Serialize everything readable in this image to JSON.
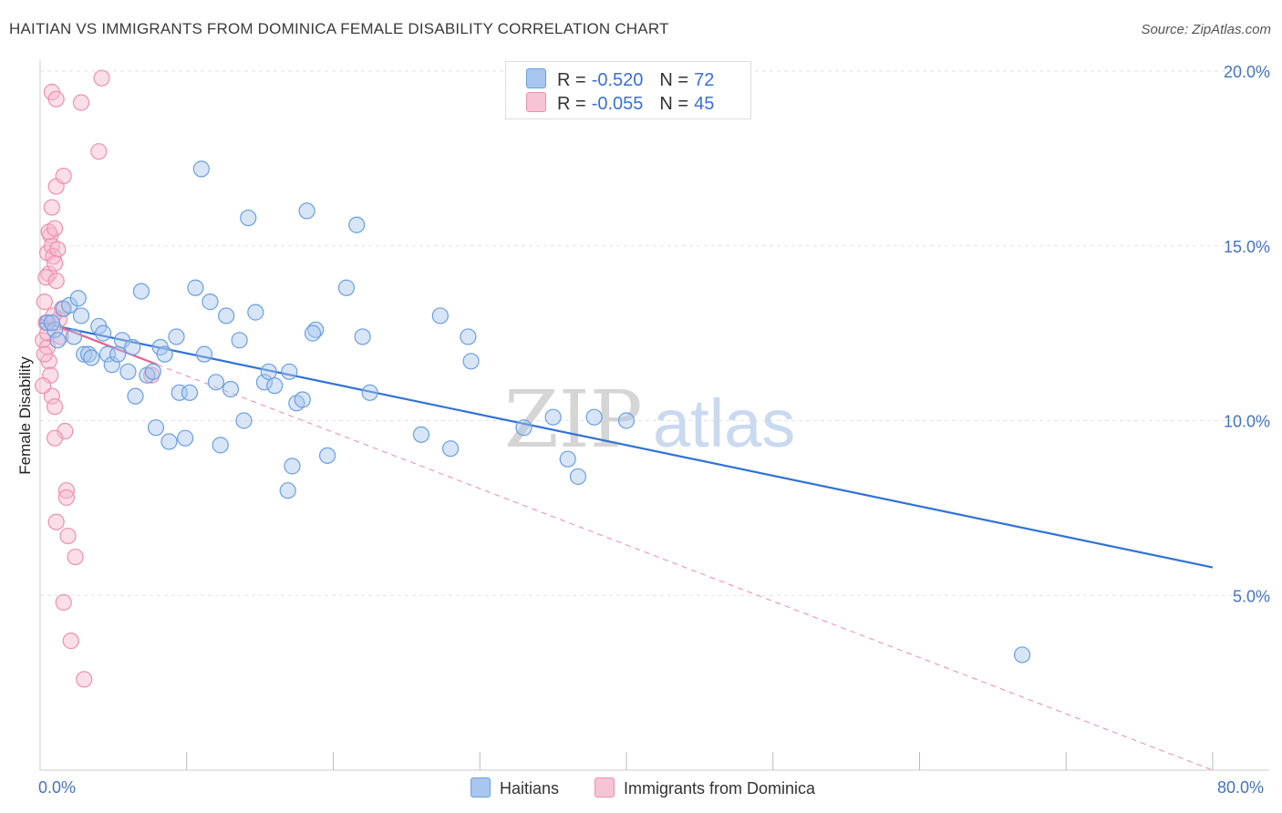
{
  "header": {
    "title": "HAITIAN VS IMMIGRANTS FROM DOMINICA FEMALE DISABILITY CORRELATION CHART",
    "source": "Source: ZipAtlas.com"
  },
  "watermark": {
    "part1": "ZIP",
    "part2": "atlas"
  },
  "legend_top": {
    "rows": [
      {
        "r_label": "R =",
        "r_value": "-0.520",
        "n_label": "N =",
        "n_value": "72",
        "color": "#a9c6ee"
      },
      {
        "r_label": "R =",
        "r_value": "-0.055",
        "n_label": "N =",
        "n_value": "45",
        "color": "#f6b8cb"
      }
    ]
  },
  "legend_bottom": {
    "items": [
      {
        "label": "Haitians",
        "color": "#a9c6ee"
      },
      {
        "label": "Immigrants from Dominica",
        "color": "#f6b8cb"
      }
    ]
  },
  "chart_data": {
    "type": "scatter",
    "xlabel": "",
    "ylabel": "Female Disability",
    "xlim": [
      0,
      80
    ],
    "ylim": [
      0,
      20
    ],
    "x_tick_labels": {
      "min": "0.0%",
      "max": "80.0%"
    },
    "y_ticks": [
      {
        "value": 5,
        "label": "5.0%"
      },
      {
        "value": 10,
        "label": "10.0%"
      },
      {
        "value": 15,
        "label": "15.0%"
      },
      {
        "value": 20,
        "label": "20.0%"
      }
    ],
    "grid": true,
    "colors": {
      "haitians": "#6a9fe0",
      "dominica": "#ee8fb0",
      "blue_line": "#2f72d6",
      "pink_line": "#e8608f"
    },
    "series": [
      {
        "name": "Haitians",
        "points": [
          [
            0.5,
            12.8
          ],
          [
            1.0,
            12.6
          ],
          [
            1.2,
            12.3
          ],
          [
            1.6,
            13.2
          ],
          [
            2.0,
            13.3
          ],
          [
            2.3,
            12.4
          ],
          [
            2.6,
            13.5
          ],
          [
            2.8,
            13.0
          ],
          [
            3.0,
            11.9
          ],
          [
            3.3,
            11.9
          ],
          [
            3.5,
            11.8
          ],
          [
            4.0,
            12.7
          ],
          [
            4.3,
            12.5
          ],
          [
            4.6,
            11.9
          ],
          [
            4.9,
            11.6
          ],
          [
            5.3,
            11.9
          ],
          [
            5.6,
            12.3
          ],
          [
            6.0,
            11.4
          ],
          [
            6.3,
            12.1
          ],
          [
            6.5,
            10.7
          ],
          [
            6.9,
            13.7
          ],
          [
            7.3,
            11.3
          ],
          [
            7.7,
            11.4
          ],
          [
            7.9,
            9.8
          ],
          [
            8.2,
            12.1
          ],
          [
            8.5,
            11.9
          ],
          [
            8.8,
            9.4
          ],
          [
            9.3,
            12.4
          ],
          [
            9.5,
            10.8
          ],
          [
            9.9,
            9.5
          ],
          [
            10.2,
            10.8
          ],
          [
            10.6,
            13.8
          ],
          [
            11.0,
            17.2
          ],
          [
            11.2,
            11.9
          ],
          [
            11.6,
            13.4
          ],
          [
            12.0,
            11.1
          ],
          [
            12.3,
            9.3
          ],
          [
            12.7,
            13.0
          ],
          [
            13.0,
            10.9
          ],
          [
            13.6,
            12.3
          ],
          [
            13.9,
            10.0
          ],
          [
            14.2,
            15.8
          ],
          [
            14.7,
            13.1
          ],
          [
            15.3,
            11.1
          ],
          [
            15.6,
            11.4
          ],
          [
            16.0,
            11.0
          ],
          [
            17.0,
            11.4
          ],
          [
            17.2,
            8.7
          ],
          [
            17.5,
            10.5
          ],
          [
            17.9,
            10.6
          ],
          [
            18.8,
            12.6
          ],
          [
            16.9,
            8.0
          ],
          [
            18.2,
            16.0
          ],
          [
            18.6,
            12.5
          ],
          [
            19.6,
            9.0
          ],
          [
            20.9,
            13.8
          ],
          [
            21.6,
            15.6
          ],
          [
            22.0,
            12.4
          ],
          [
            22.5,
            10.8
          ],
          [
            26.0,
            9.6
          ],
          [
            27.3,
            13.0
          ],
          [
            28.0,
            9.2
          ],
          [
            29.2,
            12.4
          ],
          [
            29.4,
            11.7
          ],
          [
            33.0,
            9.8
          ],
          [
            35.0,
            10.1
          ],
          [
            36.0,
            8.9
          ],
          [
            36.7,
            8.4
          ],
          [
            37.8,
            10.1
          ],
          [
            40.0,
            10.0
          ],
          [
            67.0,
            3.3
          ],
          [
            0.8,
            12.8
          ]
        ]
      },
      {
        "name": "Immigrants from Dominica",
        "points": [
          [
            0.2,
            12.3
          ],
          [
            0.4,
            12.8
          ],
          [
            0.3,
            13.4
          ],
          [
            0.5,
            12.1
          ],
          [
            0.6,
            11.7
          ],
          [
            0.7,
            11.3
          ],
          [
            0.5,
            14.8
          ],
          [
            0.6,
            14.2
          ],
          [
            0.4,
            14.1
          ],
          [
            0.7,
            15.3
          ],
          [
            0.8,
            15.0
          ],
          [
            0.9,
            14.7
          ],
          [
            0.6,
            15.4
          ],
          [
            1.0,
            15.5
          ],
          [
            0.8,
            16.1
          ],
          [
            1.2,
            14.9
          ],
          [
            1.0,
            14.5
          ],
          [
            1.1,
            14.0
          ],
          [
            1.1,
            16.7
          ],
          [
            1.6,
            17.0
          ],
          [
            0.8,
            19.4
          ],
          [
            1.1,
            19.2
          ],
          [
            4.2,
            19.8
          ],
          [
            2.8,
            19.1
          ],
          [
            4.0,
            17.7
          ],
          [
            0.8,
            10.7
          ],
          [
            1.0,
            10.4
          ],
          [
            1.7,
            9.7
          ],
          [
            1.0,
            9.5
          ],
          [
            1.8,
            8.0
          ],
          [
            1.8,
            7.8
          ],
          [
            1.1,
            7.1
          ],
          [
            1.9,
            6.7
          ],
          [
            2.4,
            6.1
          ],
          [
            1.6,
            4.8
          ],
          [
            2.1,
            3.7
          ],
          [
            3.0,
            2.6
          ],
          [
            0.3,
            11.9
          ],
          [
            0.5,
            12.5
          ],
          [
            1.3,
            12.9
          ],
          [
            1.5,
            13.2
          ],
          [
            0.9,
            13.0
          ],
          [
            1.4,
            12.4
          ],
          [
            7.6,
            11.3
          ],
          [
            0.2,
            11.0
          ]
        ]
      }
    ],
    "trendlines": [
      {
        "series": "Haitians",
        "from": [
          0,
          12.8
        ],
        "to": [
          80,
          5.8
        ],
        "style": "solid"
      },
      {
        "series": "Immigrants from Dominica",
        "from": [
          0,
          12.9
        ],
        "to": [
          8,
          11.6
        ],
        "style": "solid"
      },
      {
        "series": "Immigrants from Dominica",
        "from": [
          8,
          11.6
        ],
        "to": [
          80,
          0.0
        ],
        "style": "dashed"
      }
    ]
  }
}
